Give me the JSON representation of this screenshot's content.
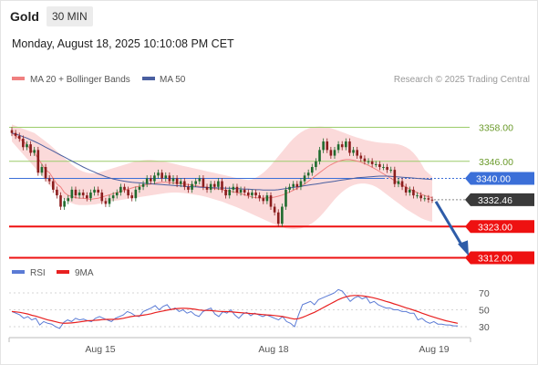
{
  "header": {
    "symbol": "Gold",
    "timeframe": "30 MIN",
    "datetime": "Monday, August 18, 2025 10:10:08 PM CET"
  },
  "legend": {
    "ma20_bb": "MA 20 + Bollinger Bands",
    "ma50": "MA 50",
    "copyright": "Research © 2025 Trading Central",
    "rsi": "RSI",
    "rsi_ma": "9MA"
  },
  "colors": {
    "bullish": "#1f6b2e",
    "bearish": "#8b1d1d",
    "band_fill": "#fbdada",
    "ma20": "#f08080",
    "ma50": "#4a5fa0",
    "support": "#ee1111",
    "pivot": "#3b6fd8",
    "resistance": "#9ccc6a",
    "current": "#3a3a3a",
    "forecast_arrow": "#2e5ca8",
    "rsi": "#5b7bd5",
    "rsi_ma": "#e82020"
  },
  "chart_data": [
    {
      "type": "candlestick",
      "title": "Gold",
      "timeframe": "30 MIN",
      "x_ticks": [
        "Aug 15",
        "Aug 18",
        "Aug 19"
      ],
      "ylim": [
        3306,
        3364
      ],
      "levels": [
        {
          "label": "3358.00",
          "value": 3358.0,
          "kind": "resistance"
        },
        {
          "label": "3346.00",
          "value": 3346.0,
          "kind": "resistance"
        },
        {
          "label": "3340.00",
          "value": 3340.0,
          "kind": "pivot"
        },
        {
          "label": "3332.46",
          "value": 3332.46,
          "kind": "current"
        },
        {
          "label": "3323.00",
          "value": 3323.0,
          "kind": "support"
        },
        {
          "label": "3312.00",
          "value": 3312.0,
          "kind": "support"
        }
      ],
      "close": [
        3356,
        3355,
        3354,
        3351,
        3352,
        3349,
        3350,
        3342,
        3344,
        3340,
        3339,
        3336,
        3334,
        3330,
        3332,
        3333,
        3336,
        3334,
        3335,
        3334,
        3333,
        3335,
        3336,
        3335,
        3332,
        3331,
        3333,
        3334,
        3335,
        3337,
        3336,
        3334,
        3333,
        3336,
        3337,
        3338,
        3340,
        3339,
        3341,
        3342,
        3340,
        3341,
        3339,
        3340,
        3338,
        3339,
        3337,
        3336,
        3338,
        3339,
        3340,
        3337,
        3336,
        3338,
        3337,
        3339,
        3336,
        3334,
        3336,
        3337,
        3335,
        3336,
        3335,
        3334,
        3335,
        3334,
        3333,
        3332,
        3334,
        3330,
        3328,
        3324,
        3330,
        3336,
        3337,
        3338,
        3337,
        3339,
        3341,
        3342,
        3344,
        3346,
        3350,
        3353,
        3350,
        3348,
        3350,
        3352,
        3351,
        3353,
        3349,
        3350,
        3348,
        3347,
        3346,
        3346,
        3345,
        3345,
        3344,
        3344,
        3343,
        3343,
        3338,
        3339,
        3337,
        3335,
        3336,
        3334,
        3334,
        3333,
        3333,
        3332.5,
        3332.46
      ],
      "ma20": [
        3356,
        3355,
        3354,
        3353,
        3352,
        3350,
        3349,
        3347,
        3345,
        3343,
        3342,
        3340,
        3338,
        3337,
        3335,
        3334,
        3333.6,
        3333.2,
        3333,
        3333,
        3332.8,
        3332.6,
        3332.8,
        3333,
        3333.4,
        3333.8,
        3334.2,
        3334.6,
        3335,
        3335.4,
        3335.8,
        3336.2,
        3336.6,
        3337,
        3337.2,
        3337.5,
        3337.8,
        3338,
        3338.2,
        3338.5,
        3338.6,
        3338.6,
        3338.5,
        3338.4,
        3338.3,
        3338.2,
        3338,
        3337.8,
        3337.6,
        3337.4,
        3337.2,
        3337,
        3336.8,
        3336.6,
        3336.4,
        3336.2,
        3336,
        3335.7,
        3335.5,
        3335.2,
        3335,
        3334.6,
        3334.2,
        3333.8,
        3333.4,
        3333.2,
        3333.1,
        3333.1,
        3333.1,
        3333.2,
        3333.4,
        3333.7,
        3334.1,
        3334.6,
        3335.2,
        3335.8,
        3336.5,
        3337.2,
        3338,
        3339,
        3340,
        3341,
        3342,
        3343,
        3344,
        3344.8,
        3345.5,
        3346,
        3346.4,
        3346.6,
        3346.6,
        3346.4,
        3346.1,
        3345.7,
        3345.2,
        3344.6,
        3343.9,
        3343.2,
        3342.4,
        3341.6,
        3340.8,
        3340,
        3339.2,
        3338.4,
        3337.6,
        3336.9,
        3336.2,
        3335.6,
        3335,
        3334.4,
        3333.9,
        3333.5,
        3333.2
      ],
      "ma50": [
        3356,
        3355.6,
        3355.2,
        3354.7,
        3354.2,
        3353.6,
        3353,
        3352.4,
        3351.7,
        3351,
        3350.3,
        3349.6,
        3348.9,
        3348.2,
        3347.5,
        3346.8,
        3346.1,
        3345.4,
        3344.7,
        3344,
        3343.4,
        3342.8,
        3342.2,
        3341.6,
        3341.1,
        3340.6,
        3340.2,
        3339.8,
        3339.5,
        3339.2,
        3339,
        3338.8,
        3338.6,
        3338.5,
        3338.4,
        3338.3,
        3338.2,
        3338.1,
        3338,
        3337.9,
        3337.8,
        3337.7,
        3337.6,
        3337.5,
        3337.4,
        3337.3,
        3337.2,
        3337.1,
        3337,
        3337,
        3336.9,
        3336.8,
        3336.8,
        3336.7,
        3336.7,
        3336.6,
        3336.6,
        3336.5,
        3336.5,
        3336.4,
        3336.4,
        3336.3,
        3336.2,
        3336.2,
        3336.1,
        3336,
        3336,
        3335.9,
        3335.9,
        3335.9,
        3335.9,
        3336,
        3336.2,
        3336.4,
        3336.6,
        3336.8,
        3337,
        3337.2,
        3337.4,
        3337.6,
        3337.8,
        3338,
        3338.2,
        3338.4,
        3338.6,
        3338.8,
        3339,
        3339.2,
        3339.4,
        3339.6,
        3339.8,
        3340,
        3340.2,
        3340.3,
        3340.4,
        3340.5,
        3340.6,
        3340.7,
        3340.8,
        3340.8,
        3340.8,
        3340.7,
        3340.6,
        3340.5,
        3340.4,
        3340.3,
        3340.2,
        3340.1,
        3340,
        3339.9,
        3339.8,
        3339.7,
        3339.6
      ],
      "bb_upper": [
        3359,
        3358.5,
        3358,
        3357.5,
        3357,
        3356.5,
        3356,
        3355,
        3354,
        3353,
        3352,
        3350.8,
        3349.6,
        3348.4,
        3347.2,
        3346,
        3344.8,
        3343.8,
        3343,
        3342.4,
        3342,
        3341.8,
        3341.8,
        3342,
        3342.4,
        3342.8,
        3343.2,
        3343.6,
        3344,
        3344.4,
        3344.8,
        3345.2,
        3345.6,
        3346,
        3346.2,
        3346.4,
        3346.5,
        3346.5,
        3346.4,
        3346.2,
        3346,
        3345.8,
        3345.5,
        3345.2,
        3344.9,
        3344.6,
        3344.3,
        3344,
        3343.7,
        3343.4,
        3343.1,
        3342.8,
        3342.5,
        3342.2,
        3341.9,
        3341.6,
        3341.3,
        3341,
        3340.7,
        3340.4,
        3340.1,
        3339.8,
        3339.6,
        3339.4,
        3339.6,
        3340.2,
        3341,
        3342,
        3343.2,
        3344.6,
        3346.2,
        3347.8,
        3349.4,
        3351,
        3352.6,
        3354,
        3355.2,
        3356.2,
        3357,
        3357.6,
        3358,
        3358.2,
        3358.3,
        3358.2,
        3358,
        3357.7,
        3357.3,
        3356.8,
        3356.3,
        3355.8,
        3355.3,
        3354.8,
        3354.4,
        3354,
        3353.6,
        3353.3,
        3353,
        3352.8,
        3352.6,
        3352.5,
        3352.4,
        3352.3,
        3352.2,
        3352,
        3351.6,
        3351,
        3350.2,
        3349,
        3347.4,
        3345.4,
        3343,
        3341.8,
        3340.6
      ],
      "bb_lower": [
        3353,
        3351.5,
        3350,
        3348.5,
        3347,
        3345.5,
        3344,
        3342.4,
        3340.8,
        3339.2,
        3337.6,
        3336.2,
        3334.8,
        3333.6,
        3332.6,
        3331.8,
        3331.2,
        3330.8,
        3330.6,
        3330.6,
        3330.6,
        3330.7,
        3330.8,
        3331,
        3331.2,
        3331.5,
        3331.8,
        3332,
        3332.2,
        3332.4,
        3332.6,
        3332.8,
        3333,
        3333.2,
        3333.4,
        3333.6,
        3333.8,
        3334,
        3334.2,
        3334.4,
        3334.6,
        3334.8,
        3334.9,
        3335,
        3335,
        3334.9,
        3334.8,
        3334.6,
        3334.4,
        3334.2,
        3334,
        3333.7,
        3333.4,
        3333,
        3332.6,
        3332.2,
        3331.8,
        3331.3,
        3330.8,
        3330.3,
        3329.8,
        3329.2,
        3328.6,
        3328,
        3327.4,
        3326.8,
        3326.2,
        3325.6,
        3325,
        3324.4,
        3323.8,
        3323.2,
        3322.8,
        3322.4,
        3322.2,
        3322.1,
        3322.2,
        3322.4,
        3322.8,
        3323.4,
        3324.2,
        3325.2,
        3326.4,
        3327.8,
        3329.4,
        3331,
        3332.6,
        3334,
        3335.2,
        3336.2,
        3337,
        3337.6,
        3338,
        3338.2,
        3338.2,
        3338,
        3337.6,
        3337,
        3336.2,
        3335.2,
        3334.2,
        3333.2,
        3332.2,
        3331.2,
        3330.2,
        3329.2,
        3328.4,
        3327.6,
        3326.8,
        3326,
        3325.4,
        3325,
        3324.6
      ]
    },
    {
      "type": "line",
      "title": "RSI",
      "yticks": [
        30,
        50,
        70
      ],
      "ylim": [
        20,
        80
      ],
      "series": [
        {
          "name": "RSI",
          "values": [
            48,
            46,
            44,
            40,
            42,
            38,
            40,
            32,
            36,
            34,
            33,
            30,
            28,
            35,
            38,
            36,
            40,
            38,
            39,
            37,
            36,
            40,
            42,
            40,
            38,
            36,
            40,
            42,
            44,
            48,
            46,
            43,
            42,
            48,
            50,
            52,
            55,
            50,
            54,
            56,
            50,
            52,
            48,
            50,
            46,
            48,
            44,
            42,
            48,
            50,
            52,
            45,
            42,
            48,
            46,
            50,
            44,
            40,
            45,
            47,
            43,
            46,
            44,
            42,
            44,
            42,
            40,
            38,
            42,
            36,
            34,
            30,
            44,
            56,
            58,
            60,
            56,
            62,
            64,
            66,
            68,
            70,
            74,
            72,
            66,
            60,
            64,
            66,
            63,
            65,
            58,
            60,
            56,
            54,
            52,
            52,
            50,
            50,
            48,
            48,
            46,
            46,
            38,
            40,
            36,
            34,
            36,
            33,
            33,
            32,
            32,
            31,
            31
          ]
        },
        {
          "name": "9MA",
          "values": [
            48,
            47.5,
            47,
            46,
            45,
            43.5,
            42.5,
            41,
            39.5,
            38,
            37,
            35.8,
            34.6,
            34,
            34.2,
            34.4,
            35,
            35.6,
            36.4,
            37,
            37.2,
            37.6,
            38,
            38.4,
            38.6,
            38.6,
            38.8,
            39.2,
            40,
            41,
            42,
            42.6,
            43,
            43.6,
            44.4,
            45.4,
            46.6,
            47.6,
            48.6,
            49.6,
            50.4,
            51.2,
            51.6,
            51.8,
            51.6,
            51.2,
            50.6,
            49.8,
            49.4,
            49.2,
            49,
            48.6,
            48.2,
            48,
            47.8,
            47.6,
            47.2,
            46.8,
            46.4,
            46,
            45.6,
            45.2,
            44.8,
            44.4,
            44,
            43.6,
            43.2,
            42.6,
            42,
            41,
            40,
            39,
            39.5,
            41,
            43,
            45,
            47,
            49.5,
            52,
            54.5,
            57,
            59.5,
            62,
            64,
            65.5,
            66.5,
            67,
            67,
            66.5,
            65.8,
            65,
            64,
            62.8,
            61.5,
            60,
            58.6,
            57,
            55.6,
            54,
            52.4,
            51,
            49.5,
            47.8,
            46,
            44.4,
            42.8,
            41.2,
            39.8,
            38.4,
            37,
            36,
            35,
            34
          ]
        }
      ]
    }
  ]
}
